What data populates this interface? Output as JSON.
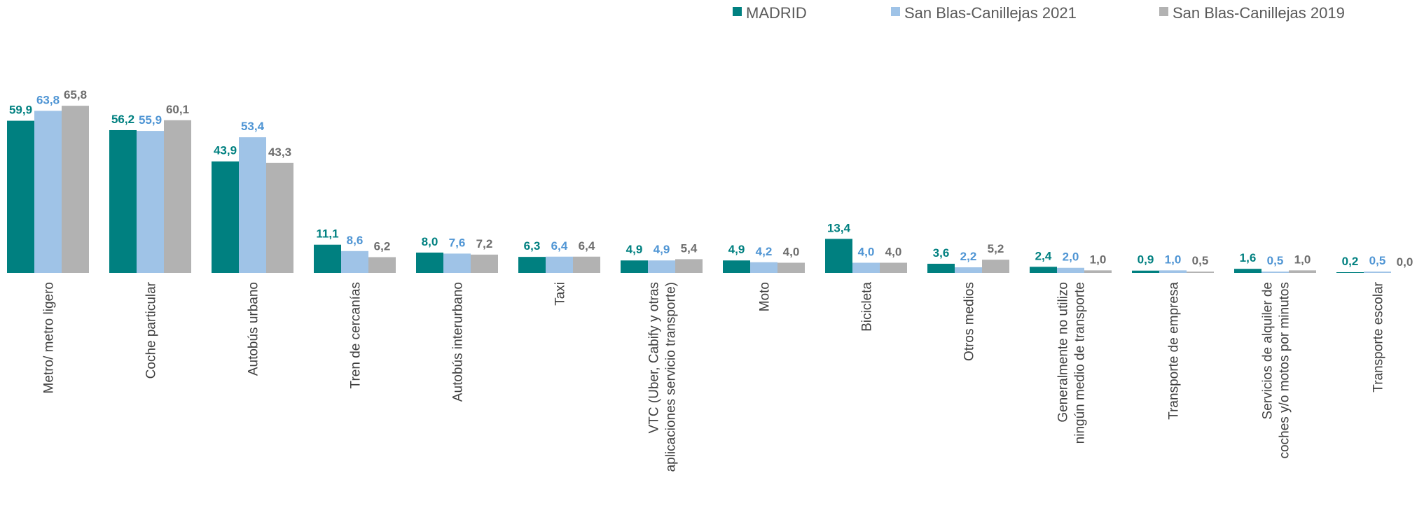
{
  "chart_data": {
    "type": "bar",
    "title": "",
    "xlabel": "",
    "ylabel": "",
    "ylim": [
      0,
      70
    ],
    "grid": false,
    "legend_position": "top-right",
    "categories": [
      [
        "Metro/ metro ligero"
      ],
      [
        "Coche particular"
      ],
      [
        "Autobús urbano"
      ],
      [
        "Tren de cercanías"
      ],
      [
        "Autobús interurbano"
      ],
      [
        "Taxi"
      ],
      [
        "VTC (Uber, Cabify y otras",
        "aplicaciones servicio transporte)"
      ],
      [
        "Moto"
      ],
      [
        "Bicicleta"
      ],
      [
        "Otros medios"
      ],
      [
        "Generalmente no utilizo",
        "ningún medio de transporte"
      ],
      [
        "Transporte de empresa"
      ],
      [
        "Servicios de alquiler de",
        "coches y/o motos por minutos"
      ],
      [
        "Transporte escolar"
      ]
    ],
    "series": [
      {
        "name": "MADRID",
        "color": "#008080",
        "label_color": "#008080",
        "values": [
          59.9,
          56.2,
          43.9,
          11.1,
          8.0,
          6.3,
          4.9,
          4.9,
          13.4,
          3.6,
          2.4,
          0.9,
          1.6,
          0.2
        ],
        "labels": [
          "59,9",
          "56,2",
          "43,9",
          "11,1",
          "8,0",
          "6,3",
          "4,9",
          "4,9",
          "13,4",
          "3,6",
          "2,4",
          "0,9",
          "1,6",
          "0,2"
        ]
      },
      {
        "name": "San Blas-Canillejas 2021",
        "color": "#9fc3e7",
        "label_color": "#4f95d4",
        "values": [
          63.8,
          55.9,
          53.4,
          8.6,
          7.6,
          6.4,
          4.9,
          4.2,
          4.0,
          2.2,
          2.0,
          1.0,
          0.5,
          0.5
        ],
        "labels": [
          "63,8",
          "55,9",
          "53,4",
          "8,6",
          "7,6",
          "6,4",
          "4,9",
          "4,2",
          "4,0",
          "2,2",
          "2,0",
          "1,0",
          "0,5",
          "0,5"
        ]
      },
      {
        "name": "San Blas-Canillejas 2019",
        "color": "#b2b2b2",
        "label_color": "#6d6d6d",
        "values": [
          65.8,
          60.1,
          43.3,
          6.2,
          7.2,
          6.4,
          5.4,
          4.0,
          4.0,
          5.2,
          1.0,
          0.5,
          1.0,
          0.0
        ],
        "labels": [
          "65,8",
          "60,1",
          "43,3",
          "6,2",
          "7,2",
          "6,4",
          "5,4",
          "4,0",
          "4,0",
          "5,2",
          "1,0",
          "0,5",
          "1,0",
          "0,0"
        ]
      }
    ]
  }
}
